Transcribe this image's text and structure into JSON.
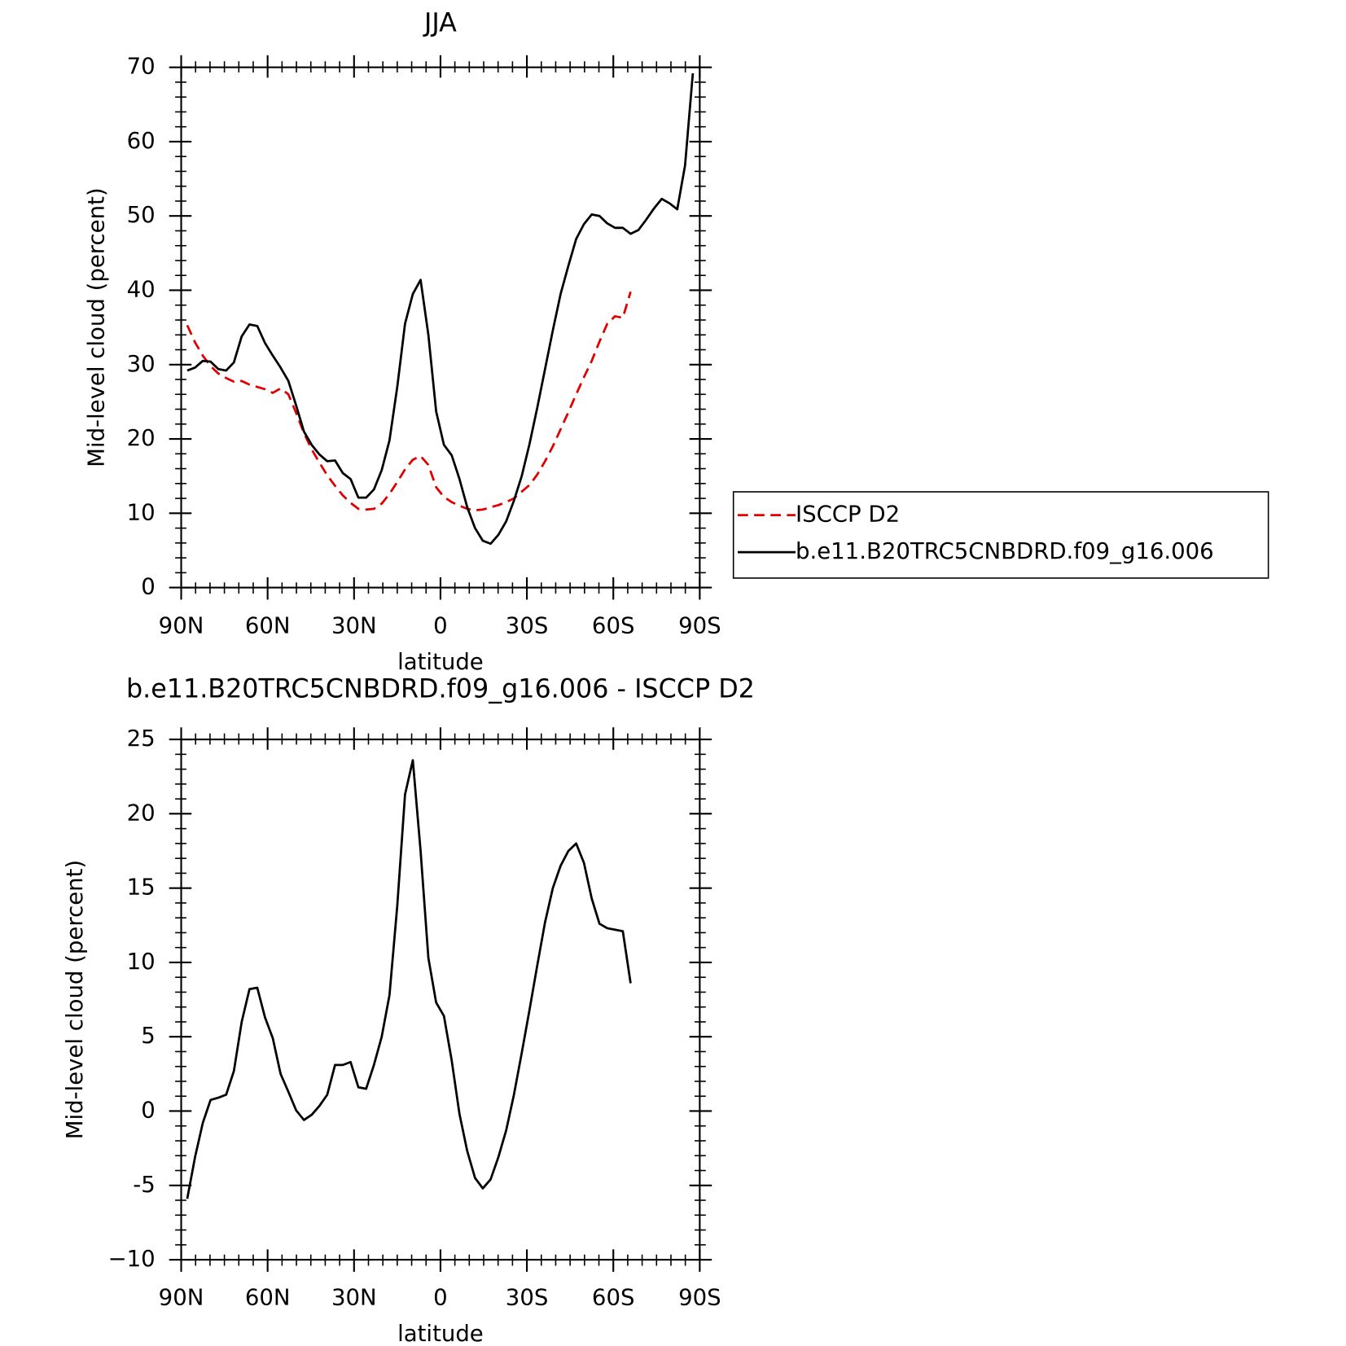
{
  "chart_data": [
    {
      "type": "line",
      "title": "JJA",
      "xlabel": "latitude",
      "ylabel": "Mid-level cloud (percent)",
      "x": [
        87.9,
        85.2,
        82.5,
        79.8,
        77.1,
        74.4,
        71.7,
        69,
        66.3,
        63.6,
        60.9,
        58.2,
        55.5,
        52.8,
        50.1,
        47.4,
        44.7,
        42,
        39.3,
        36.6,
        33.9,
        31.2,
        28.5,
        25.8,
        23.1,
        20.4,
        17.7,
        15,
        12.3,
        9.6,
        6.9,
        4.2,
        1.5,
        -1.2,
        -3.9,
        -6.6,
        -9.3,
        -12,
        -14.7,
        -17.4,
        -20.1,
        -22.8,
        -25.5,
        -28.2,
        -30.9,
        -33.6,
        -36.3,
        -39,
        -41.7,
        -44.4,
        -47.1,
        -49.8,
        -52.5,
        -55.2,
        -57.9,
        -60.6,
        -63.3,
        -66,
        -68.7,
        -71.4,
        -74.1,
        -76.8,
        -79.5,
        -82.2,
        -84.9,
        -87.6
      ],
      "series": [
        {
          "name": "ISCCP D2",
          "color": "#e00000",
          "dashed": true,
          "values": [
            35.3,
            33,
            31.2,
            29.8,
            28.8,
            28.2,
            27.7,
            27.8,
            27.3,
            27,
            26.7,
            26.2,
            26.8,
            26,
            23.5,
            20.8,
            18.6,
            16.8,
            15.1,
            13.7,
            12.4,
            11.4,
            10.6,
            10.5,
            10.6,
            11.3,
            12.6,
            14.2,
            15.9,
            17.2,
            17.7,
            16.5,
            13.5,
            12.2,
            11.5,
            11,
            10.6,
            10.4,
            10.5,
            10.8,
            11.1,
            11.5,
            12,
            12.9,
            13.8,
            15.2,
            17,
            19,
            21.3,
            23.6,
            26,
            28.3,
            30.5,
            33.1,
            35.5,
            36.5,
            36.3,
            39.8,
            null,
            null,
            null,
            null,
            null,
            null,
            null,
            null
          ]
        },
        {
          "name": "b.e11.B20TRC5CNBDRD.f09_g16.006",
          "color": "#000000",
          "dashed": false,
          "values": [
            29.2,
            29.6,
            30.5,
            30.4,
            29.4,
            29.2,
            30.3,
            33.8,
            35.4,
            35.2,
            32.9,
            31.2,
            29.6,
            27.8,
            24.5,
            21,
            19.2,
            17.9,
            17,
            17.1,
            15.4,
            14.6,
            12.1,
            12.1,
            13.2,
            15.8,
            19.8,
            27,
            35.5,
            39.5,
            41.4,
            34,
            23.7,
            19.2,
            17.8,
            14.6,
            10.8,
            8,
            6.3,
            5.9,
            7.1,
            8.9,
            11.7,
            15,
            19.3,
            24.2,
            29.4,
            34.6,
            39.5,
            43.3,
            46.9,
            48.9,
            50.2,
            50,
            49,
            48.4,
            48.4,
            47.6,
            48.1,
            49.5,
            51,
            52.3,
            51.7,
            50.9,
            56.8,
            69.2
          ]
        }
      ],
      "xlim": [
        90,
        -90
      ],
      "xticks": [
        {
          "value": 90,
          "label": "90N"
        },
        {
          "value": 60,
          "label": "60N"
        },
        {
          "value": 30,
          "label": "30N"
        },
        0,
        {
          "value": -30,
          "label": "30S"
        },
        {
          "value": -60,
          "label": "60S"
        },
        {
          "value": -90,
          "label": "90S"
        }
      ],
      "ylim": [
        0,
        70
      ],
      "yticks": [
        0,
        10,
        20,
        30,
        40,
        50,
        60,
        70
      ],
      "legend": "right"
    },
    {
      "type": "line",
      "title": "b.e11.B20TRC5CNBDRD.f09_g16.006 - ISCCP D2",
      "xlabel": "latitude",
      "ylabel": "Mid-level cloud (percent)",
      "x": [
        87.9,
        85.2,
        82.5,
        79.8,
        77.1,
        74.4,
        71.7,
        69,
        66.3,
        63.6,
        60.9,
        58.2,
        55.5,
        52.8,
        50.1,
        47.4,
        44.7,
        42,
        39.3,
        36.6,
        33.9,
        31.2,
        28.5,
        25.8,
        23.1,
        20.4,
        17.7,
        15,
        12.3,
        9.6,
        6.9,
        4.2,
        1.5,
        -1.2,
        -3.9,
        -6.6,
        -9.3,
        -12,
        -14.7,
        -17.4,
        -20.1,
        -22.8,
        -25.5,
        -28.2,
        -30.9,
        -33.6,
        -36.3,
        -39,
        -41.7,
        -44.4,
        -47.1,
        -49.8,
        -52.5,
        -55.2,
        -57.9,
        -60.6,
        -63.3,
        -66,
        -68.7,
        -71.4,
        -74.1,
        -76.8,
        -79.5,
        -82.2,
        -84.9,
        -87.6
      ],
      "series": [
        {
          "color": "#000000",
          "dashed": false,
          "values": [
            -5.9,
            -3.1,
            -0.8,
            0.75,
            0.9,
            1.1,
            2.7,
            6,
            8.2,
            8.3,
            6.3,
            4.9,
            2.5,
            1.3,
            0.05,
            -0.6,
            -0.25,
            0.35,
            1.1,
            3.1,
            3.1,
            3.3,
            1.6,
            1.5,
            3.1,
            5,
            7.8,
            13.8,
            21.3,
            23.6,
            17.5,
            10.3,
            7.3,
            6.4,
            3.4,
            -0.2,
            -2.7,
            -4.5,
            -5.2,
            -4.6,
            -3.1,
            -1.3,
            1.1,
            3.9,
            6.8,
            9.8,
            12.7,
            15,
            16.5,
            17.5,
            18,
            16.7,
            14.3,
            12.6,
            12.3,
            12.2,
            12.1,
            8.6,
            null,
            null,
            null,
            null,
            null,
            null,
            null,
            null
          ]
        }
      ],
      "xlim": [
        90,
        -90
      ],
      "xticks": [
        {
          "value": 90,
          "label": "90N"
        },
        {
          "value": 60,
          "label": "60N"
        },
        {
          "value": 30,
          "label": "30N"
        },
        0,
        {
          "value": -30,
          "label": "30S"
        },
        {
          "value": -60,
          "label": "60S"
        },
        {
          "value": -90,
          "label": "90S"
        }
      ],
      "ylim": [
        -10,
        25
      ],
      "yticks": [
        {
          "value": -10,
          "label": "−10"
        },
        -5,
        0,
        5,
        10,
        15,
        20,
        25
      ]
    }
  ]
}
